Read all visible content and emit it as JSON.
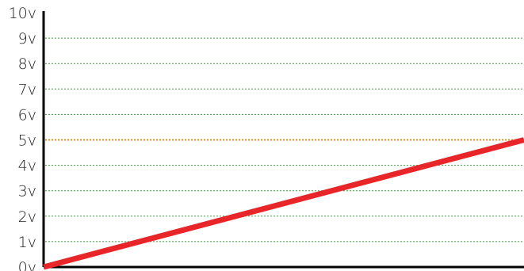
{
  "chart_data": {
    "type": "line",
    "title": "",
    "xlabel": "",
    "ylabel": "",
    "ylim": [
      0,
      10
    ],
    "yticks": [
      {
        "value": 0,
        "label": "0v"
      },
      {
        "value": 1,
        "label": "1v"
      },
      {
        "value": 2,
        "label": "2v"
      },
      {
        "value": 3,
        "label": "3v"
      },
      {
        "value": 4,
        "label": "4v"
      },
      {
        "value": 5,
        "label": "5v"
      },
      {
        "value": 6,
        "label": "6v"
      },
      {
        "value": 7,
        "label": "7v"
      },
      {
        "value": 8,
        "label": "8v"
      },
      {
        "value": 9,
        "label": "9v"
      },
      {
        "value": 10,
        "label": "10v"
      }
    ],
    "xlim": [
      0,
      1
    ],
    "grid": true,
    "reference_line": {
      "value": 5,
      "color": "#e8901e"
    },
    "grid_color": "#3aa03a",
    "series": [
      {
        "color": "#e8262a",
        "points": [
          {
            "x": 0,
            "y": 0
          },
          {
            "x": 1,
            "y": 5
          }
        ]
      }
    ]
  }
}
